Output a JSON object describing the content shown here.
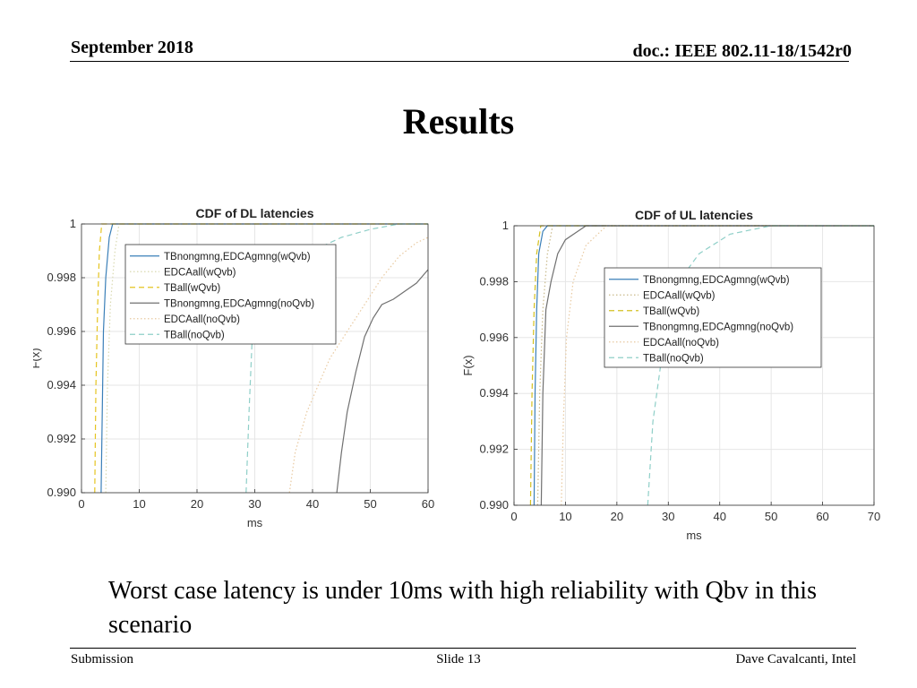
{
  "header": {
    "date": "September 2018",
    "doc": "doc.: IEEE 802.11-18/1542r0"
  },
  "slide": {
    "title": "Results",
    "body": "Worst case latency is under 10ms with high reliability with Qbv in this scenario"
  },
  "footer": {
    "left": "Submission",
    "center": "Slide 13",
    "right": "Dave Cavalcanti, Intel"
  },
  "chart_data": [
    {
      "type": "line",
      "title": "CDF of DL latencies",
      "xlabel": "ms",
      "ylabel": "F(x)",
      "xlim": [
        0,
        60
      ],
      "ylim": [
        0.99,
        1
      ],
      "xticks": [
        0,
        10,
        20,
        30,
        40,
        50,
        60
      ],
      "yticks": [
        0.99,
        0.992,
        0.994,
        0.996,
        0.998,
        1
      ],
      "grid": true,
      "legend_position": "top-left",
      "series": [
        {
          "name": "TBnongmng,EDCAgmng(wQvb)",
          "color": "#3a7fb8",
          "dash": "solid",
          "points": [
            [
              3.4,
              0.99
            ],
            [
              3.6,
              0.993
            ],
            [
              3.8,
              0.996
            ],
            [
              4.2,
              0.998
            ],
            [
              4.8,
              0.9995
            ],
            [
              5.4,
              1
            ],
            [
              60,
              1
            ]
          ]
        },
        {
          "name": "EDCAall(wQvb)",
          "color": "#d9d9b0",
          "dash": "dotted",
          "points": [
            [
              4.2,
              0.99
            ],
            [
              4.5,
              0.994
            ],
            [
              5.0,
              0.997
            ],
            [
              5.8,
              0.999
            ],
            [
              6.5,
              1
            ],
            [
              60,
              1
            ]
          ]
        },
        {
          "name": "TBall(wQvb)",
          "color": "#e5c420",
          "dash": "dashed",
          "points": [
            [
              2.3,
              0.99
            ],
            [
              2.5,
              0.994
            ],
            [
              2.8,
              0.997
            ],
            [
              3.1,
              0.999
            ],
            [
              3.5,
              1
            ],
            [
              60,
              1
            ]
          ]
        },
        {
          "name": "TBnongmng,EDCAgmng(noQvb)",
          "color": "#707070",
          "dash": "solid",
          "points": [
            [
              44.2,
              0.99
            ],
            [
              45,
              0.9915
            ],
            [
              46,
              0.993
            ],
            [
              47.5,
              0.9945
            ],
            [
              49,
              0.9958
            ],
            [
              50.5,
              0.9965
            ],
            [
              52,
              0.997
            ],
            [
              54,
              0.9972
            ],
            [
              56,
              0.9975
            ],
            [
              58,
              0.9978
            ],
            [
              60,
              0.9983
            ]
          ]
        },
        {
          "name": "EDCAall(noQvb)",
          "color": "#e8c9a0",
          "dash": "dotted",
          "points": [
            [
              36,
              0.99
            ],
            [
              37,
              0.9915
            ],
            [
              39,
              0.993
            ],
            [
              41,
              0.994
            ],
            [
              43,
              0.995
            ],
            [
              46,
              0.996
            ],
            [
              49,
              0.997
            ],
            [
              52,
              0.998
            ],
            [
              55,
              0.9988
            ],
            [
              58,
              0.9993
            ],
            [
              60,
              0.9995
            ]
          ]
        },
        {
          "name": "TBall(noQvb)",
          "color": "#8fcfc8",
          "dash": "dashed",
          "points": [
            [
              28.5,
              0.99
            ],
            [
              29,
              0.993
            ],
            [
              29.5,
              0.9955
            ],
            [
              31,
              0.997
            ],
            [
              33,
              0.998
            ],
            [
              40,
              0.999
            ],
            [
              45,
              0.9995
            ],
            [
              50,
              0.9998
            ],
            [
              55,
              1
            ],
            [
              60,
              1
            ]
          ]
        }
      ]
    },
    {
      "type": "line",
      "title": "CDF of UL latencies",
      "xlabel": "ms",
      "ylabel": "F(x)",
      "xlim": [
        0,
        70
      ],
      "ylim": [
        0.99,
        1
      ],
      "xticks": [
        0,
        10,
        20,
        30,
        40,
        50,
        60,
        70
      ],
      "yticks": [
        0.99,
        0.992,
        0.994,
        0.996,
        0.998,
        1
      ],
      "grid": true,
      "legend_position": "middle-right",
      "series": [
        {
          "name": "TBnongmng,EDCAgmng(wQvb)",
          "color": "#3a7fb8",
          "dash": "solid",
          "points": [
            [
              3.9,
              0.99
            ],
            [
              4.1,
              0.994
            ],
            [
              4.4,
              0.997
            ],
            [
              4.8,
              0.999
            ],
            [
              5.6,
              0.9998
            ],
            [
              6.5,
              1
            ],
            [
              70,
              1
            ]
          ]
        },
        {
          "name": "EDCAall(wQvb)",
          "color": "#c9b98a",
          "dash": "dotted",
          "points": [
            [
              4.6,
              0.99
            ],
            [
              5.0,
              0.994
            ],
            [
              5.6,
              0.997
            ],
            [
              6.5,
              0.999
            ],
            [
              7.5,
              1
            ],
            [
              70,
              1
            ]
          ]
        },
        {
          "name": "TBall(wQvb)",
          "color": "#d4c020",
          "dash": "dashed",
          "points": [
            [
              3.2,
              0.99
            ],
            [
              3.5,
              0.994
            ],
            [
              3.9,
              0.997
            ],
            [
              4.4,
              0.999
            ],
            [
              5.2,
              1
            ],
            [
              70,
              1
            ]
          ]
        },
        {
          "name": "TBnongmng,EDCAgmng(noQvb)",
          "color": "#707070",
          "dash": "solid",
          "points": [
            [
              5.3,
              0.99
            ],
            [
              5.6,
              0.994
            ],
            [
              6.2,
              0.997
            ],
            [
              7.2,
              0.998
            ],
            [
              8.5,
              0.999
            ],
            [
              10,
              0.9995
            ],
            [
              14,
              1
            ],
            [
              70,
              1
            ]
          ]
        },
        {
          "name": "EDCAall(noQvb)",
          "color": "#e8c9a0",
          "dash": "dotted",
          "points": [
            [
              9.2,
              0.99
            ],
            [
              9.6,
              0.993
            ],
            [
              10.2,
              0.996
            ],
            [
              11.5,
              0.998
            ],
            [
              14,
              0.9993
            ],
            [
              18,
              1
            ],
            [
              70,
              1
            ]
          ]
        },
        {
          "name": "TBall(noQvb)",
          "color": "#8fcfc8",
          "dash": "dashed",
          "points": [
            [
              26,
              0.99
            ],
            [
              27,
              0.993
            ],
            [
              28.5,
              0.995
            ],
            [
              30,
              0.9965
            ],
            [
              32,
              0.998
            ],
            [
              36,
              0.999
            ],
            [
              42,
              0.9997
            ],
            [
              50,
              1
            ],
            [
              70,
              1
            ]
          ]
        }
      ]
    }
  ]
}
